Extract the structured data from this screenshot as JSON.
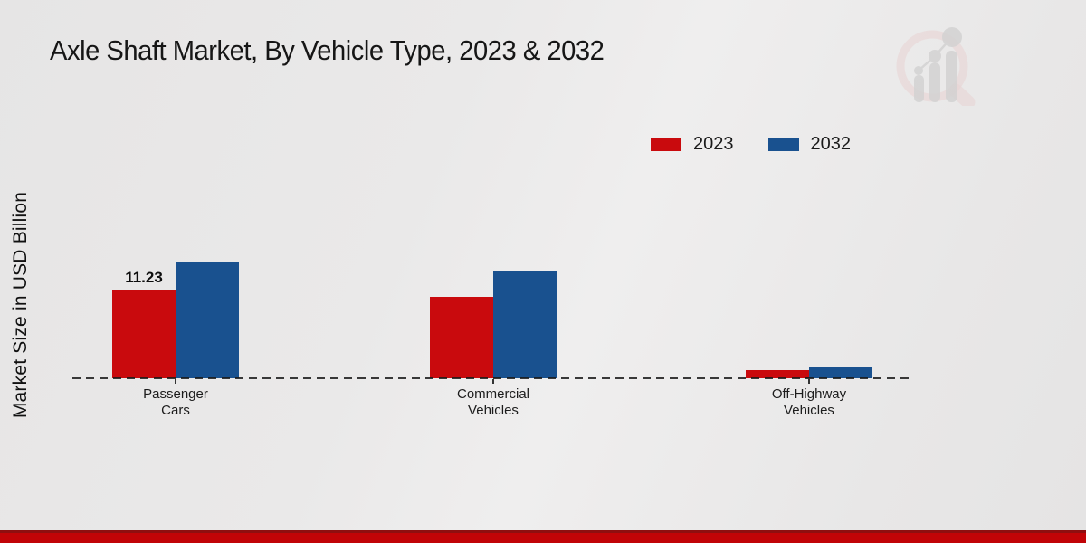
{
  "title": "Axle Shaft Market, By Vehicle Type, 2023 & 2032",
  "y_axis_label": "Market Size in USD Billion",
  "legend": [
    {
      "label": "2023",
      "color": "#c90a0d"
    },
    {
      "label": "2032",
      "color": "#19518f"
    }
  ],
  "colors": {
    "series_2023": "#c90a0d",
    "series_2032": "#19518f",
    "background": "#e9e8e8",
    "baseline": "#1a1a1a",
    "bottom_strip": "#c10407",
    "bottom_strip_edge": "#8e0f10",
    "watermark_pink": "#e7cbcb",
    "watermark_gray": "#c9c9c9"
  },
  "chart_data": {
    "type": "bar",
    "categories": [
      "Passenger\nCars",
      "Commercial\nVehicles",
      "Off-Highway\nVehicles"
    ],
    "series": [
      {
        "name": "2023",
        "color": "#c90a0d",
        "values": [
          11.23,
          10.3,
          1.0
        ],
        "labels": [
          "11.23",
          "",
          ""
        ]
      },
      {
        "name": "2032",
        "color": "#19518f",
        "values": [
          14.7,
          13.5,
          1.5
        ],
        "labels": [
          "",
          "",
          ""
        ]
      }
    ],
    "title": "Axle Shaft Market, By Vehicle Type, 2023 & 2032",
    "xlabel": "",
    "ylabel": "Market Size in USD Billion",
    "ylim": [
      0,
      16
    ],
    "grid": false,
    "y_axis_ticks_visible": false,
    "baseline_style": "dashed",
    "legend_position": "top-right",
    "annotations": [
      {
        "series": "2023",
        "category": "Passenger Cars",
        "text": "11.23"
      }
    ]
  }
}
